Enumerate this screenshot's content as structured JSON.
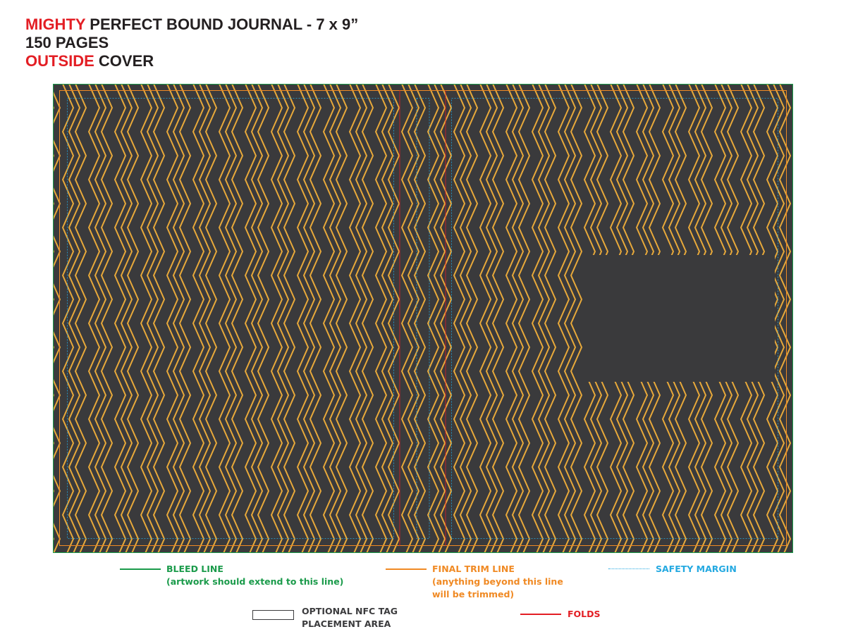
{
  "header": {
    "line1_accent": "MIGHTY",
    "line1_rest": " PERFECT BOUND JOURNAL - 7 x 9”",
    "line2": "150 PAGES",
    "line3_accent": "OUTSIDE",
    "line3_rest": " COVER"
  },
  "colors": {
    "background": "#3a3a3c",
    "pattern": "#e8a93a",
    "bleed": "#1b9b4b",
    "trim": "#f08a24",
    "safety": "#24a9e1",
    "fold": "#e31e24",
    "accent_red": "#e31e24"
  },
  "legend": {
    "bleed_title": "BLEED LINE",
    "bleed_note": "(artwork should extend to this line)",
    "trim_title": "FINAL TRIM LINE",
    "trim_note_1": "(anything beyond this line",
    "trim_note_2": "will be trimmed)",
    "safety_title": "SAFETY MARGIN",
    "nfc_line_1": "OPTIONAL NFC TAG",
    "nfc_line_2": "PLACEMENT AREA",
    "folds_title": "FOLDS"
  }
}
